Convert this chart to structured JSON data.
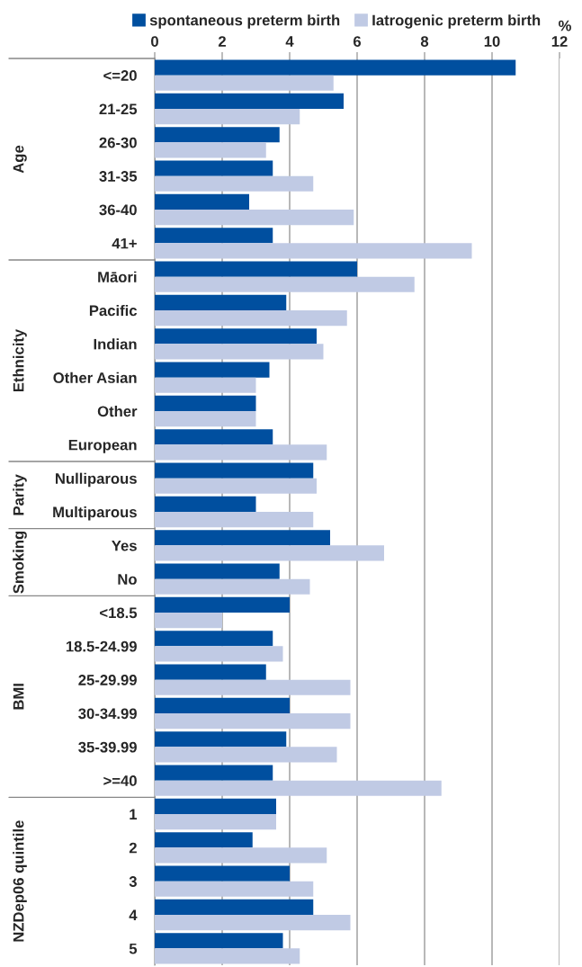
{
  "chart_data": {
    "type": "bar",
    "orientation": "horizontal",
    "xlabel": "%",
    "categories": [
      "<=20",
      "21-25",
      "26-30",
      "31-35",
      "36-40",
      "41+",
      "Māori",
      "Pacific",
      "Indian",
      "Other Asian",
      "Other",
      "European",
      "Nulliparous",
      "Multiparous",
      "Yes",
      "No",
      "<18.5",
      "18.5-24.99",
      "25-29.99",
      "30-34.99",
      "35-39.99",
      ">=40",
      "1",
      "2",
      "3",
      "4",
      "5"
    ],
    "series": [
      {
        "name": "spontaneous preterm birth",
        "color": "#004f9f",
        "values": [
          10.7,
          5.6,
          3.7,
          3.5,
          2.8,
          3.5,
          6.0,
          3.9,
          4.8,
          3.4,
          3.0,
          3.5,
          4.7,
          3.0,
          5.2,
          3.7,
          4.0,
          3.5,
          3.3,
          4.0,
          3.9,
          3.5,
          3.6,
          2.9,
          4.0,
          4.7,
          3.8
        ]
      },
      {
        "name": "Iatrogenic preterm birth",
        "color": "#c0cae4",
        "values": [
          5.3,
          4.3,
          3.3,
          4.7,
          5.9,
          9.4,
          7.7,
          5.7,
          5.0,
          3.0,
          3.0,
          5.1,
          4.8,
          4.7,
          6.8,
          4.6,
          2.0,
          3.8,
          5.8,
          5.8,
          5.4,
          8.5,
          3.6,
          5.1,
          4.7,
          5.8,
          4.3
        ]
      }
    ],
    "xlim": [
      0,
      12
    ],
    "xticks": [
      0,
      2,
      4,
      6,
      8,
      10,
      12
    ],
    "grid": "x",
    "legend": "top",
    "annotations": [
      "Age",
      "Ethnicity",
      "Parity",
      "Smoking",
      "BMI",
      "NZDep06 quintile"
    ]
  }
}
